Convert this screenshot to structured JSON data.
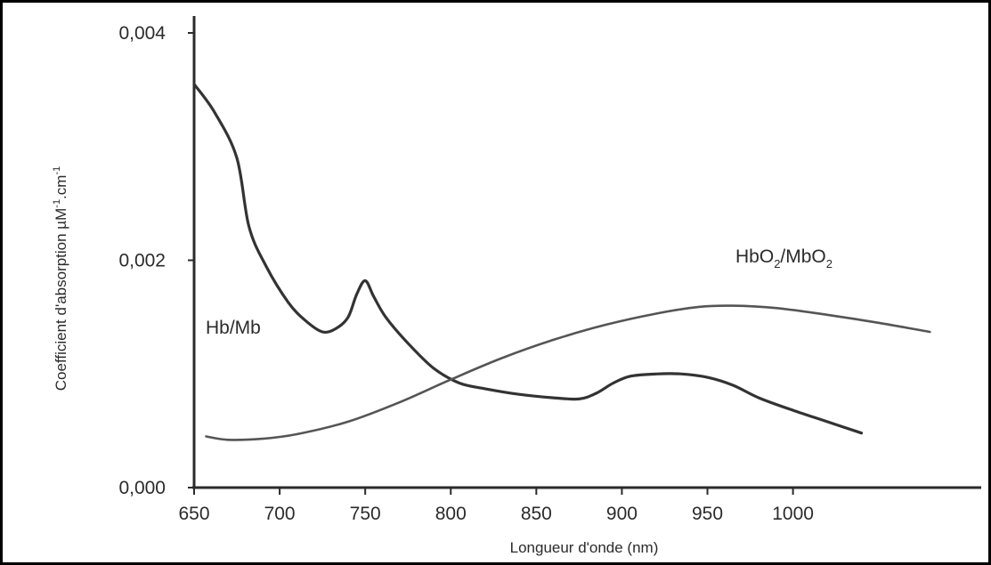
{
  "chart_data": {
    "type": "line",
    "xlabel": "Longueur d'onde (nm)",
    "ylabel": {
      "base": "Coefficient d'absorption µM",
      "sup1": "-1",
      "mid": ".cm",
      "sup2": "-1"
    },
    "xlim": [
      650,
      1110
    ],
    "ylim": [
      0.0,
      0.004
    ],
    "x_ticks": [
      650,
      700,
      750,
      800,
      850,
      900,
      950,
      1000
    ],
    "x_tick_labels": [
      "650",
      "700",
      "750",
      "800",
      "850",
      "900",
      "950",
      "1000"
    ],
    "y_ticks": [
      0.0,
      0.002,
      0.004
    ],
    "y_tick_labels": [
      "0,000",
      "0,002",
      "0,004"
    ],
    "grid": false,
    "legend": "none",
    "series": [
      {
        "id": "hb",
        "label_text": "Hb/Mb",
        "color": "#333333",
        "x": [
          650,
          662,
          675,
          682,
          692,
          705,
          715,
          725,
          733,
          740,
          745,
          750,
          755,
          762,
          775,
          790,
          805,
          820,
          840,
          860,
          875,
          885,
          895,
          905,
          920,
          935,
          950,
          965,
          980,
          1000,
          1020,
          1040
        ],
        "y": [
          0.00355,
          0.0033,
          0.0029,
          0.0023,
          0.00195,
          0.00163,
          0.00147,
          0.00137,
          0.0014,
          0.0015,
          0.0017,
          0.00182,
          0.00168,
          0.0015,
          0.00127,
          0.00105,
          0.00092,
          0.00087,
          0.00082,
          0.00079,
          0.00078,
          0.00083,
          0.00092,
          0.00098,
          0.001,
          0.001,
          0.00097,
          0.0009,
          0.00079,
          0.00068,
          0.00058,
          0.00048
        ]
      },
      {
        "id": "hbo2",
        "label_text": "HbO2/MbO2",
        "color": "#555555",
        "x": [
          657,
          670,
          690,
          710,
          740,
          770,
          800,
          830,
          860,
          890,
          920,
          945,
          965,
          990,
          1020,
          1050,
          1080
        ],
        "y": [
          0.00045,
          0.00042,
          0.00043,
          0.00047,
          0.00058,
          0.00075,
          0.00095,
          0.00114,
          0.0013,
          0.00143,
          0.00153,
          0.00159,
          0.0016,
          0.00158,
          0.00152,
          0.00145,
          0.00137
        ]
      }
    ],
    "annotations": {
      "hb_label": "Hb/Mb",
      "hbo2_label": {
        "base1": "HbO",
        "sub1": "2",
        "mid": "/MbO",
        "sub2": "2"
      }
    }
  }
}
